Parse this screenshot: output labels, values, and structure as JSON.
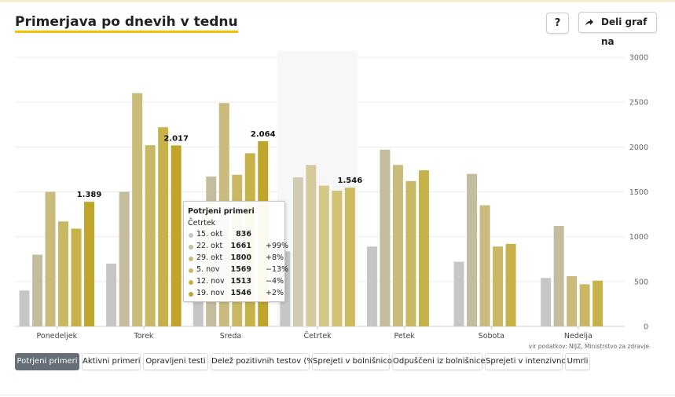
{
  "header": {
    "title": "Primerjava po dnevih v tednu",
    "help_label": "?",
    "share_label": "Deli graf na"
  },
  "source": "vir podatkov: NIJZ, Ministrstvo za zdravje",
  "tabs": [
    {
      "label": "Potrjeni primeri",
      "active": true
    },
    {
      "label": "Aktivni primeri",
      "active": false
    },
    {
      "label": "Opravljeni testi",
      "active": false
    },
    {
      "label": "Delež pozitivnih testov (%)",
      "active": false
    },
    {
      "label": "Sprejeti v bolnišnico",
      "active": false
    },
    {
      "label": "Odpuščeni iz bolnišnice",
      "active": false
    },
    {
      "label": "Sprejeti v intenzivno",
      "active": false
    },
    {
      "label": "Umrli",
      "active": false
    }
  ],
  "tooltip": {
    "title": "Potrjeni primeri",
    "subtitle": "Četrtek",
    "rows": [
      {
        "date": "15. okt",
        "value": "836",
        "change": ""
      },
      {
        "date": "22. okt",
        "value": "1661",
        "change": "+99%"
      },
      {
        "date": "29. okt",
        "value": "1800",
        "change": "+8%"
      },
      {
        "date": "5. nov",
        "value": "1569",
        "change": "−13%"
      },
      {
        "date": "12. nov",
        "value": "1513",
        "change": "−4%"
      },
      {
        "date": "19. nov",
        "value": "1546",
        "change": "+2%"
      }
    ]
  },
  "chart_data": {
    "type": "bar",
    "categories": [
      "Ponedeljek",
      "Torek",
      "Sreda",
      "Četrtek",
      "Petek",
      "Sobota",
      "Nedelja"
    ],
    "series": [
      {
        "color": "#c6c6c6",
        "values": [
          400,
          700,
          330,
          836,
          890,
          720,
          540
        ]
      },
      {
        "color": "#c3bd9e",
        "values": [
          800,
          1500,
          1670,
          1661,
          1970,
          1700,
          1120
        ]
      },
      {
        "color": "#c8bb7c",
        "values": [
          1500,
          2600,
          2490,
          1800,
          1800,
          1350,
          560
        ]
      },
      {
        "color": "#c8b863",
        "values": [
          1170,
          2020,
          1690,
          1569,
          1620,
          890,
          470
        ]
      },
      {
        "color": "#c6b248",
        "values": [
          1090,
          2220,
          1930,
          1513,
          1740,
          920,
          510
        ]
      },
      {
        "color": "#c0a52c",
        "values": [
          1389,
          2017,
          2064,
          1546,
          null,
          null,
          null
        ]
      }
    ],
    "data_labels": [
      "1.389",
      "2.017",
      "2.064",
      "1.546"
    ],
    "y_ticks": [
      "0",
      "500",
      "1000",
      "1500",
      "2000",
      "2500",
      "3000"
    ],
    "ylim": [
      0,
      3000
    ],
    "highlight_category": "Četrtek",
    "grid": true
  }
}
